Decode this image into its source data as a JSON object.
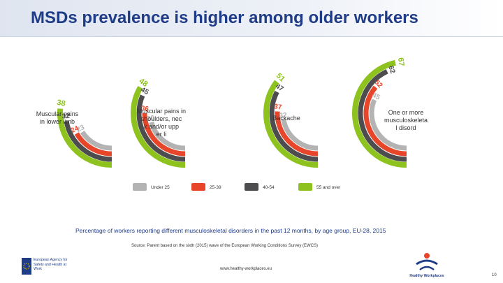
{
  "title": "MSDs prevalence is higher among older workers",
  "chart_data": {
    "type": "radial-bar",
    "series": [
      {
        "name": "Under 25",
        "color": "#b3b3b3"
      },
      {
        "name": "25-39",
        "color": "#e8462a"
      },
      {
        "name": "40-54",
        "color": "#4d4d4f"
      },
      {
        "name": "55 and over",
        "color": "#8dc21f"
      }
    ],
    "groups": [
      {
        "label": "Muscular pains in lower limbs",
        "values": [
          23,
          24,
          32,
          38
        ]
      },
      {
        "label": "Muscular pains in shoulders, neck and/or upper limbs",
        "values": [
          30,
          36,
          45,
          48
        ]
      },
      {
        "label": "Backache",
        "values": [
          32,
          37,
          47,
          51
        ]
      },
      {
        "label": "One or more musculoskeletal disorder",
        "values": [
          45,
          52,
          62,
          67
        ]
      }
    ],
    "caption": "Percentage of workers reporting different musculoskeletal disorders in the past 12 months, by age group, EU-28, 2015"
  },
  "labels": {
    "g0": "Muscular pains in lower limbs",
    "g1": "Muscular pains in shoulders, neck and/or upper limbs",
    "g2": "Backache",
    "g3": "One or more musculoskeletal disorder"
  },
  "source": "Source: Parent based on the sixth (2015) wave of the European Working Conditions Survey (EWCS)",
  "url": "www.healthy-workplaces.eu",
  "page_number": "10",
  "logos": {
    "left": "European Agency for Safety and Health at Work",
    "right": "Healthy Workplaces"
  },
  "colors": {
    "title": "#1f3c88",
    "accent": "#1f3c88"
  }
}
